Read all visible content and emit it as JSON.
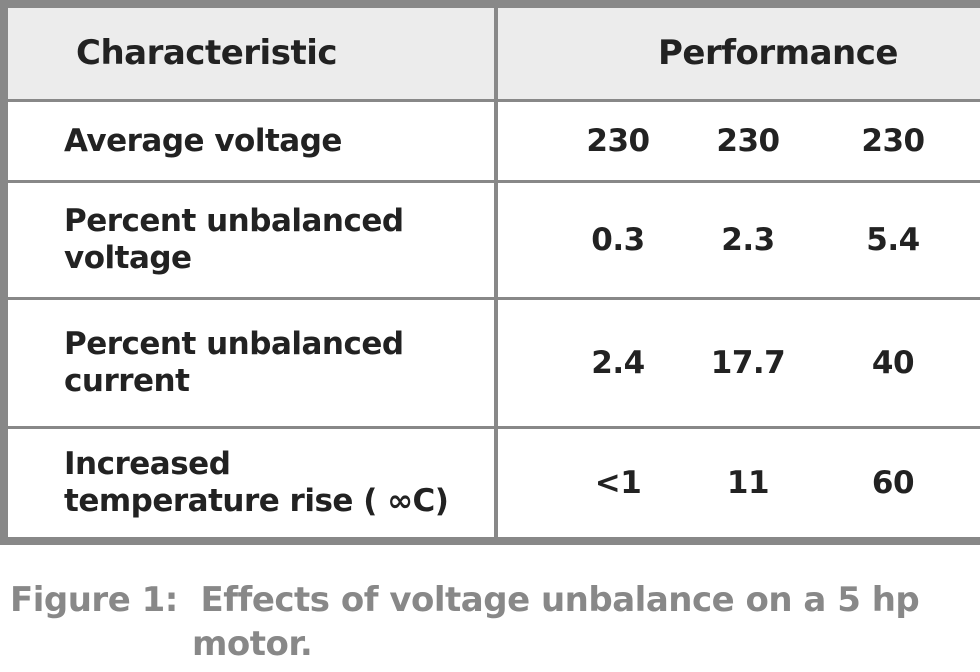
{
  "table": {
    "headers": {
      "characteristic": "Characteristic",
      "performance": "Performance"
    },
    "rows": [
      {
        "label": "Average voltage",
        "values": [
          "230",
          "230",
          "230"
        ]
      },
      {
        "label": "Percent unbalanced voltage",
        "values": [
          "0.3",
          "2.3",
          "5.4"
        ]
      },
      {
        "label": "Percent unbalanced current",
        "values": [
          "2.4",
          "17.7",
          "40"
        ]
      },
      {
        "label": "Increased temperature rise ( ∞C)",
        "values": [
          "<1",
          "11",
          "60"
        ]
      }
    ]
  },
  "caption": {
    "prefix": "Figure 1:",
    "text_line1": "Effects of voltage unbalance on a 5 hp",
    "text_line2": "motor."
  }
}
